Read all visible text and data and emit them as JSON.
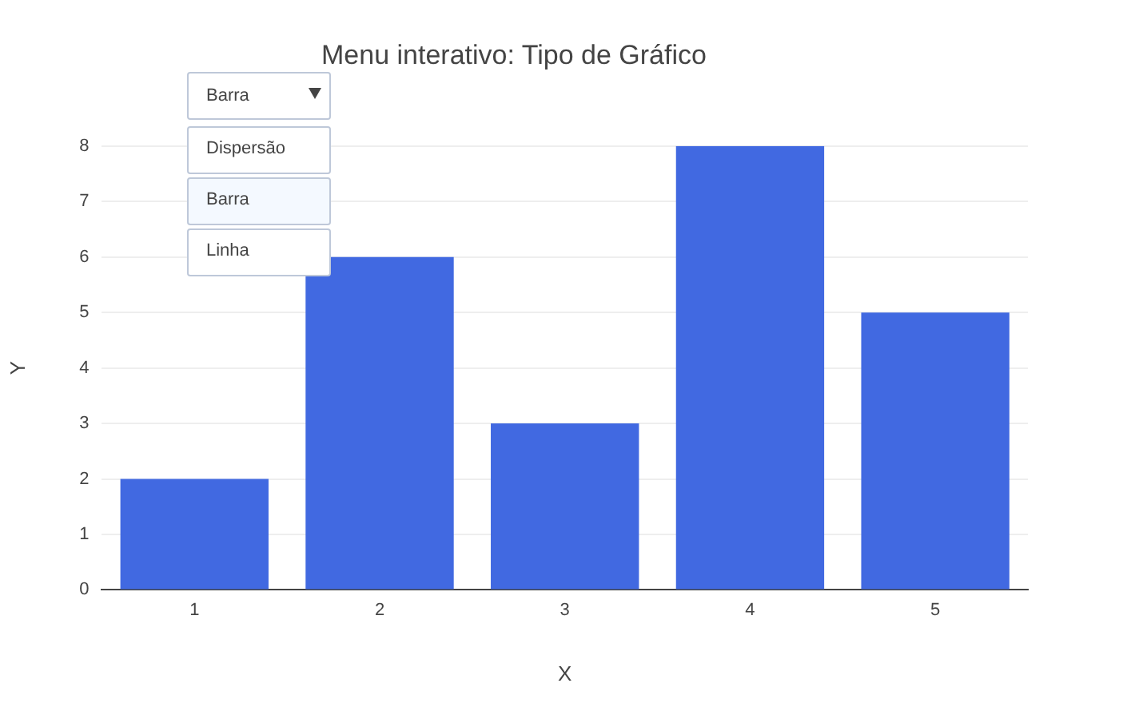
{
  "chart_data": {
    "type": "bar",
    "title": "Menu interativo: Tipo de Gráfico",
    "xlabel": "X",
    "ylabel": "Y",
    "categories": [
      "1",
      "2",
      "3",
      "4",
      "5"
    ],
    "values": [
      2,
      6,
      3,
      8,
      5
    ],
    "color": "#4169e1",
    "ylim": [
      0,
      8
    ],
    "yticks": [
      0,
      1,
      2,
      3,
      4,
      5,
      6,
      7,
      8
    ],
    "grid": "y",
    "legend": false,
    "annotations": [
      "Barra",
      "Dispersão",
      "Barra",
      "Linha"
    ]
  }
}
